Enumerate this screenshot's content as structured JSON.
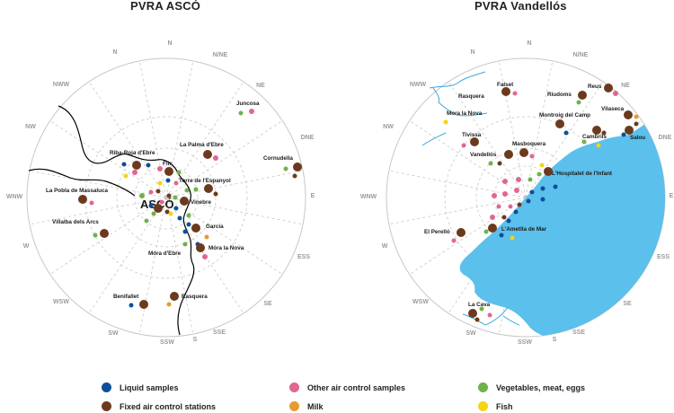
{
  "maps": {
    "asco": {
      "title": "PVRA ASCÓ",
      "plant_label": "ASCÓ",
      "directions": [
        "N",
        "N/NE",
        "NE",
        "DNE",
        "E",
        "ESS",
        "SE",
        "SSE",
        "S",
        "SSW",
        "SW",
        "WSW",
        "W",
        "WNW",
        "NW",
        "NWW",
        "N"
      ],
      "places": [
        "Juncosa",
        "La Palma d'Ebre",
        "Cornudella",
        "Riba-Roja d'Ebre",
        "Flix",
        "Torre de l'Espanyol",
        "La Pobla de Massaluca",
        "Vinebre",
        "Villalba dels Arcs",
        "Garcia",
        "Móra d'Ebre",
        "Móra la Nova",
        "Benifallet",
        "Rasquera"
      ]
    },
    "vandellos": {
      "title": "PVRA Vandellós",
      "directions": [
        "N",
        "N/NE",
        "NE",
        "DNE",
        "E",
        "ESS",
        "SE",
        "SSE",
        "S",
        "SSW",
        "SW",
        "WSW",
        "W",
        "WNW",
        "NW",
        "NWW"
      ],
      "places": [
        "Falset",
        "Rasquera",
        "Mora la Nova",
        "Reus",
        "Riudoms",
        "Vilaseca",
        "Montroig del Camp",
        "Cambrils",
        "Salou",
        "Tivissa",
        "Masboquera",
        "Vandellós",
        "L'Hospitalet de l'Infant",
        "El Perelló",
        "L'Ametlla de Mar",
        "La Cava"
      ]
    }
  },
  "legend": [
    {
      "label": "Liquid samples",
      "color": "#0b4f9c"
    },
    {
      "label": "Other air control samples",
      "color": "#e0678f"
    },
    {
      "label": "Vegetables, meat, eggs",
      "color": "#6db24a"
    },
    {
      "label": "Fixed air control stations",
      "color": "#6b3a1e"
    },
    {
      "label": "Milk",
      "color": "#e79a2f"
    },
    {
      "label": "Fish",
      "color": "#f4d416"
    }
  ],
  "colors": {
    "sea": "#5bc0eb",
    "river": "#39a9dc",
    "circle": "#c8c8c8",
    "sector": "#c8c8c8"
  }
}
